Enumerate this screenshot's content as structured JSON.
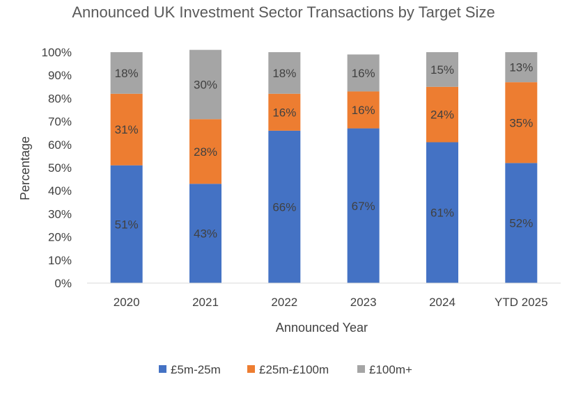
{
  "chart_data": {
    "type": "bar",
    "stacked": true,
    "title": "Announced UK Investment Sector Transactions by Target Size",
    "xlabel": "Announced Year",
    "ylabel": "Percentage",
    "categories": [
      "2020",
      "2021",
      "2022",
      "2023",
      "2024",
      "YTD 2025"
    ],
    "series": [
      {
        "name": "£5m-25m",
        "color": "#4472C4",
        "values": [
          51,
          43,
          66,
          67,
          61,
          52
        ],
        "labels": [
          "51%",
          "43%",
          "66%",
          "67%",
          "61%",
          "52%"
        ]
      },
      {
        "name": "£25m-£100m",
        "color": "#ED7D31",
        "values": [
          31,
          28,
          16,
          16,
          24,
          35
        ],
        "labels": [
          "31%",
          "28%",
          "16%",
          "16%",
          "24%",
          "35%"
        ]
      },
      {
        "name": "£100m+",
        "color": "#A5A5A5",
        "values": [
          18,
          30,
          18,
          16,
          15,
          13
        ],
        "labels": [
          "18%",
          "30%",
          "18%",
          "16%",
          "15%",
          "13%"
        ]
      }
    ],
    "ylim": [
      0,
      100
    ],
    "yticks": [
      "0%",
      "10%",
      "20%",
      "30%",
      "40%",
      "50%",
      "60%",
      "70%",
      "80%",
      "90%",
      "100%"
    ],
    "grid": false,
    "legend_position": "bottom"
  }
}
